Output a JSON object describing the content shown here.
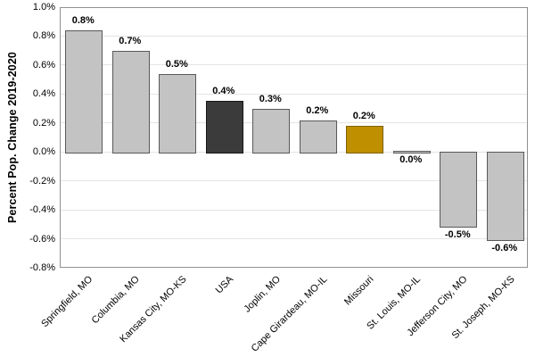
{
  "chart_data": {
    "type": "bar",
    "title": "",
    "ylabel": "Percent Pop. Change 2019-2020",
    "xlabel": "",
    "ylim": [
      -0.8,
      1.0
    ],
    "grid": true,
    "legend": false,
    "yticks": [
      {
        "value": 1.0,
        "label": "1.0%"
      },
      {
        "value": 0.8,
        "label": "0.8%"
      },
      {
        "value": 0.6,
        "label": "0.6%"
      },
      {
        "value": 0.4,
        "label": "0.4%"
      },
      {
        "value": 0.2,
        "label": "0.2%"
      },
      {
        "value": 0.0,
        "label": "0.0%"
      },
      {
        "value": -0.2,
        "label": "-0.2%"
      },
      {
        "value": -0.4,
        "label": "-0.4%"
      },
      {
        "value": -0.6,
        "label": "-0.6%"
      },
      {
        "value": -0.8,
        "label": "-0.8%"
      }
    ],
    "bars": [
      {
        "category": "Springfield, MO",
        "value": 0.84,
        "data_label": "0.8%",
        "label_pos": "above",
        "fill": "#C3C3C3",
        "stroke": "#595959"
      },
      {
        "category": "Columbia, MO",
        "value": 0.7,
        "data_label": "0.7%",
        "label_pos": "above",
        "fill": "#C3C3C3",
        "stroke": "#595959"
      },
      {
        "category": "Kansas City, MO-KS",
        "value": 0.54,
        "data_label": "0.5%",
        "label_pos": "above",
        "fill": "#C3C3C3",
        "stroke": "#595959"
      },
      {
        "category": "USA",
        "value": 0.35,
        "data_label": "0.4%",
        "label_pos": "above",
        "fill": "#3B3B3B",
        "stroke": "#161616"
      },
      {
        "category": "Joplin, MO",
        "value": 0.3,
        "data_label": "0.3%",
        "label_pos": "above",
        "fill": "#C3C3C3",
        "stroke": "#595959"
      },
      {
        "category": "Cape Girardeau, MO-IL",
        "value": 0.22,
        "data_label": "0.2%",
        "label_pos": "above",
        "fill": "#C3C3C3",
        "stroke": "#595959"
      },
      {
        "category": "Missouri",
        "value": 0.18,
        "data_label": "0.2%",
        "label_pos": "above",
        "fill": "#BF8F00",
        "stroke": "#7F6000"
      },
      {
        "category": "St. Louis, MO-IL",
        "value": 0.005,
        "data_label": "0.0%",
        "label_pos": "below",
        "fill": "#C3C3C3",
        "stroke": "#595959"
      },
      {
        "category": "Jefferson City, MO",
        "value": -0.51,
        "data_label": "-0.5%",
        "label_pos": "below",
        "fill": "#C3C3C3",
        "stroke": "#595959"
      },
      {
        "category": "St. Joseph, MO-KS",
        "value": -0.6,
        "data_label": "-0.6%",
        "label_pos": "below",
        "fill": "#C3C3C3",
        "stroke": "#595959"
      }
    ],
    "style": {
      "bar_fill_default": "#C3C3C3",
      "bar_stroke_default": "#595959",
      "usa_bar_fill": "#3B3B3B",
      "missouri_bar_fill": "#BF8F00",
      "gridline_color": "#E4E4E4",
      "frame_color": "#909090",
      "text_color": "#000000"
    }
  }
}
